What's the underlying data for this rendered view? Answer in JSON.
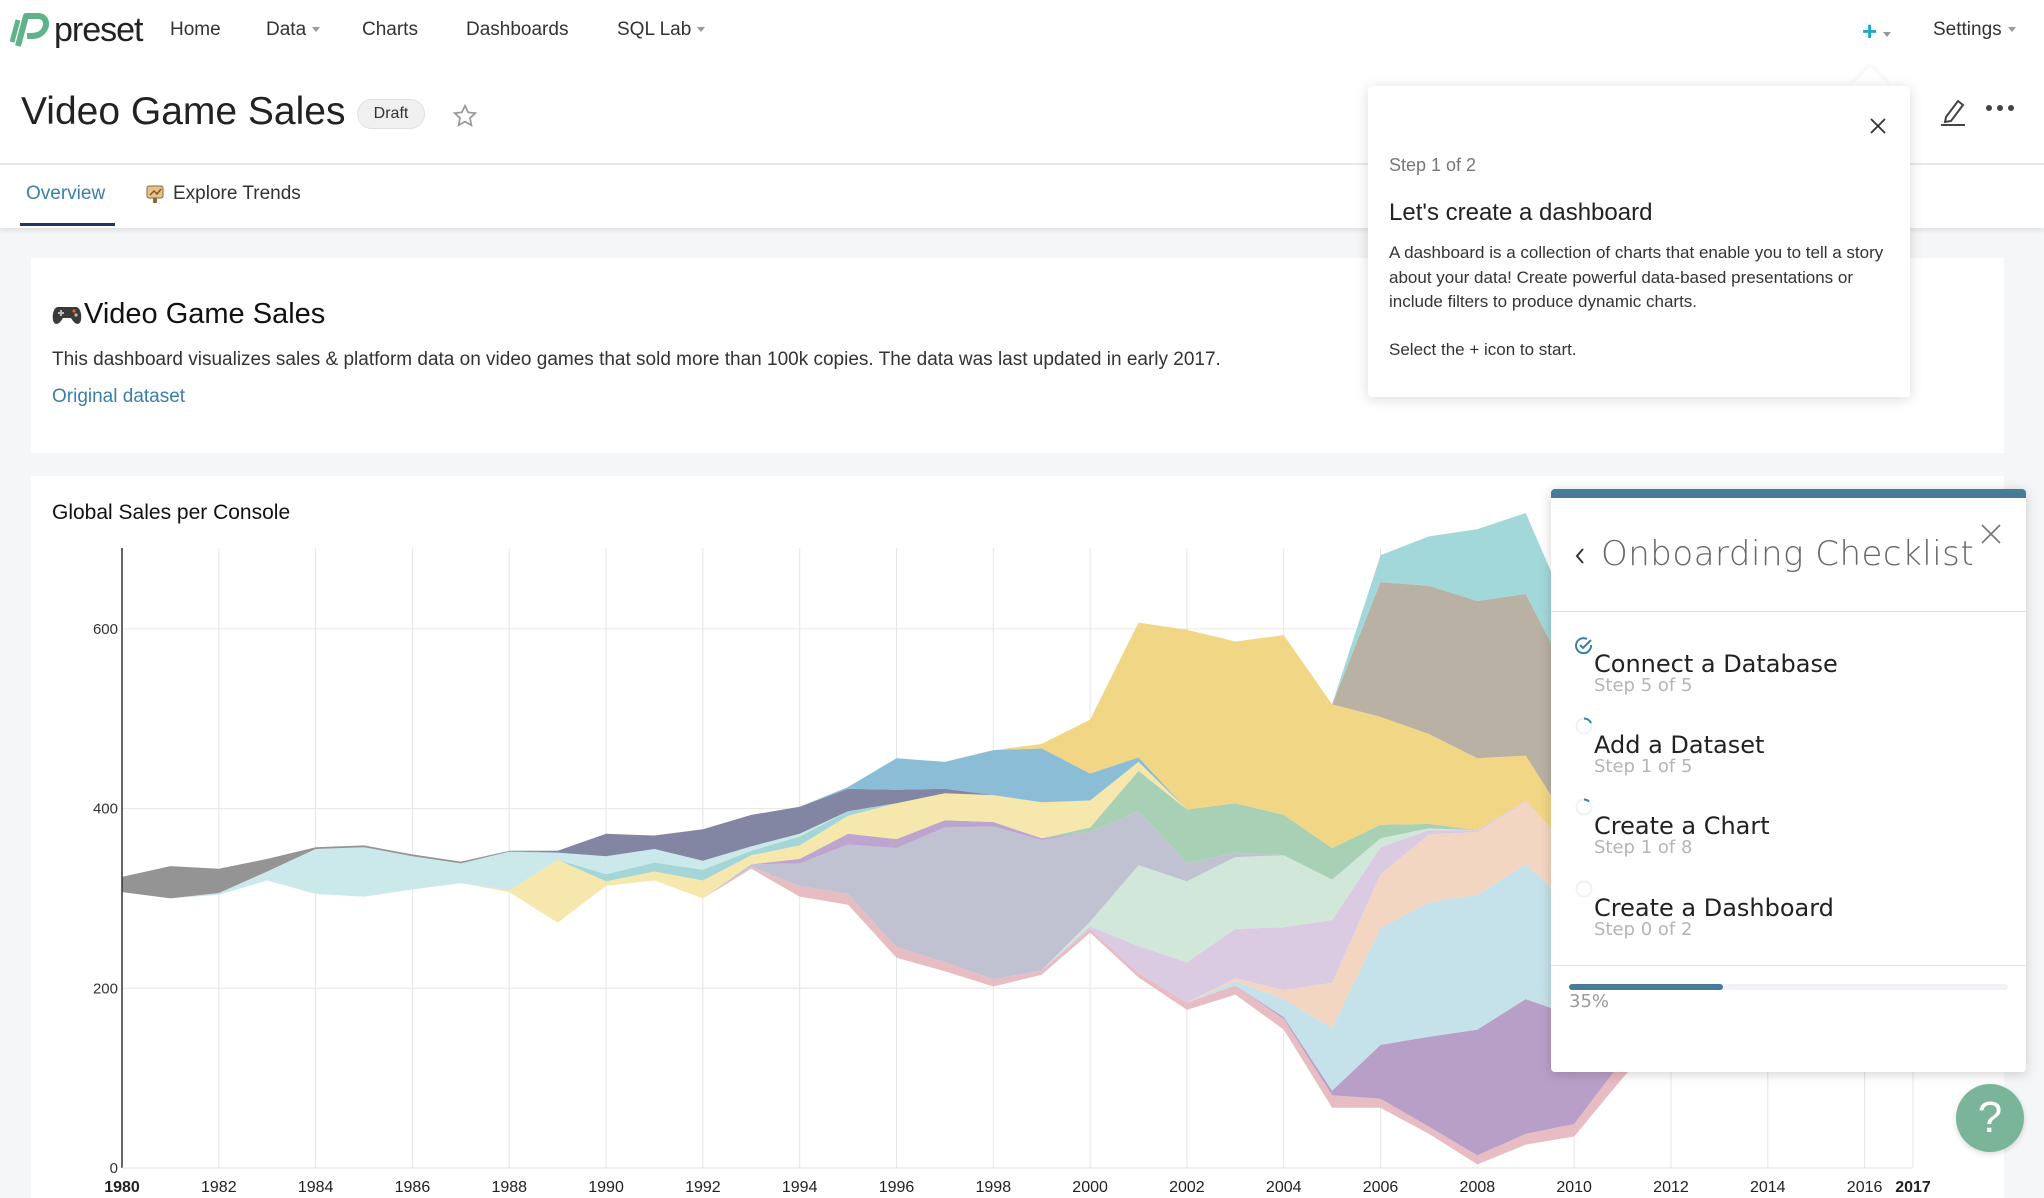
{
  "nav": {
    "brand": "preset",
    "items": [
      {
        "label": "Home",
        "dropdown": false
      },
      {
        "label": "Data",
        "dropdown": true
      },
      {
        "label": "Charts",
        "dropdown": false
      },
      {
        "label": "Dashboards",
        "dropdown": false
      },
      {
        "label": "SQL Lab",
        "dropdown": true
      }
    ],
    "settings_label": "Settings",
    "plus_color": "#20a7c9"
  },
  "header": {
    "title": "Video Game Sales",
    "badge": "Draft",
    "tabs": [
      {
        "label": "Overview",
        "active": true
      },
      {
        "label": "Explore Trends",
        "active": false
      }
    ]
  },
  "markdown": {
    "heading": "Video Game Sales",
    "description": "This dashboard visualizes sales & platform data on video games that sold more than 100k copies. The data was last updated in early 2017.",
    "link": "Original dataset"
  },
  "tooltip": {
    "step": "Step 1 of 2",
    "heading": "Let's create a dashboard",
    "body": "A dashboard is a collection of charts that enable you to tell a story about your data! Create powerful data-based presentations or include filters to produce dynamic charts.",
    "cta": "Select the + icon to start."
  },
  "checklist": {
    "title": "Onboarding Checklist",
    "items": [
      {
        "title": "Connect a Database",
        "step": "Step 5 of 5",
        "status": "done"
      },
      {
        "title": "Add a Dataset",
        "step": "Step 1 of 5",
        "status": "in-progress"
      },
      {
        "title": "Create a Chart",
        "step": "Step 1 of 8",
        "status": "in-progress"
      },
      {
        "title": "Create a Dashboard",
        "step": "Step 0 of 2",
        "status": "todo"
      }
    ],
    "progress": 35,
    "progress_label": "35%",
    "accent": "#467b9a"
  },
  "help": {
    "label": "?"
  },
  "chart_data": {
    "type": "area",
    "title": "Global Sales per Console",
    "xlabel": "",
    "ylabel": "",
    "xlim": [
      1980,
      2017
    ],
    "ylim": [
      0,
      690
    ],
    "grid": true,
    "x_ticks": [
      "1980",
      "1982",
      "1984",
      "1986",
      "1988",
      "1990",
      "1992",
      "1994",
      "1996",
      "1998",
      "2000",
      "2002",
      "2004",
      "2006",
      "2008",
      "2010",
      "2012",
      "2014",
      "2016",
      "2017"
    ],
    "y_ticks": [
      "0",
      "200",
      "400",
      "600"
    ],
    "baseline": [
      307,
      300,
      304,
      320,
      305,
      302,
      310,
      317,
      307,
      273,
      314,
      320,
      300,
      333,
      302,
      293,
      234,
      219,
      202,
      215,
      262,
      212,
      176,
      193,
      154,
      67,
      67,
      38,
      4,
      26,
      35,
      100,
      160,
      200,
      220,
      240,
      250,
      255
    ],
    "series": [
      {
        "color": "#e6b8c0",
        "start": 1993,
        "values": [
          2,
          12,
          12,
          12,
          10,
          8,
          5,
          4,
          5,
          8,
          10,
          12,
          14,
          10,
          8,
          10,
          12,
          14,
          20,
          25,
          15,
          8,
          4,
          2,
          1
        ]
      },
      {
        "color": "#b49ac4",
        "start": 2004,
        "values": [
          2,
          5,
          60,
          100,
          140,
          150,
          120,
          80,
          50,
          25,
          10,
          3,
          1
        ]
      },
      {
        "color": "#c2dfe8",
        "start": 2003,
        "values": [
          5,
          20,
          70,
          130,
          150,
          150,
          150,
          120,
          80,
          50,
          30,
          15,
          5,
          2
        ]
      },
      {
        "color": "#f2d4bf",
        "start": 2003,
        "values": [
          3,
          10,
          50,
          60,
          75,
          70,
          70,
          60,
          50,
          40,
          30,
          15,
          5,
          1
        ]
      },
      {
        "color": "#d8c8e2",
        "start": 2000,
        "values": [
          3,
          30,
          45,
          55,
          70,
          70,
          30,
          5,
          2,
          1
        ]
      },
      {
        "color": "#cfe6d8",
        "start": 2000,
        "values": [
          5,
          90,
          90,
          80,
          80,
          45,
          10,
          2
        ]
      },
      {
        "color": "#bdbfd0",
        "start": 1993,
        "values": [
          3,
          25,
          55,
          110,
          150,
          170,
          145,
          100,
          60,
          20,
          5
        ]
      },
      {
        "color": "#b9a0cc",
        "start": 1994,
        "values": [
          5,
          12,
          10,
          8,
          5,
          2
        ]
      },
      {
        "color": "#a3cdb0",
        "start": 2000,
        "values": [
          5,
          45,
          60,
          55,
          45,
          35,
          15,
          5
        ]
      },
      {
        "color": "#f5e6a8",
        "start": 1988,
        "values": [
          2,
          70,
          5,
          10,
          20,
          10,
          15,
          20,
          40,
          30,
          30,
          40,
          30,
          10
        ]
      },
      {
        "color": "#9fd4d6",
        "start": 1990,
        "values": [
          8,
          10,
          12,
          5,
          10,
          5
        ]
      },
      {
        "color": "#c8e8ea",
        "start": 1982,
        "values": [
          2,
          10,
          50,
          55,
          37,
          22,
          43,
          8,
          20,
          15,
          10,
          5,
          3
        ]
      },
      {
        "color": "#8e8e8e",
        "start": 1980,
        "values": [
          17,
          36,
          27,
          14,
          2,
          2,
          2,
          2,
          1
        ]
      },
      {
        "color": "#7c809e",
        "start": 1989,
        "values": [
          2,
          25,
          15,
          35,
          35,
          30,
          25,
          15,
          5
        ]
      },
      {
        "color": "#86b9d5",
        "start": 1995,
        "values": [
          2,
          35,
          30,
          50,
          60,
          30,
          5
        ]
      },
      {
        "color": "#f0d57e",
        "start": 1999,
        "values": [
          5,
          60,
          150,
          200,
          180,
          200,
          160,
          120,
          100,
          80,
          50,
          25,
          10,
          3
        ]
      },
      {
        "color": "#b5ad9e",
        "start": 2005,
        "values": [
          0,
          150,
          165,
          175,
          180,
          160,
          140,
          110,
          90,
          60,
          30,
          10,
          2
        ]
      },
      {
        "color": "#9dd6d8",
        "start": 2005,
        "values": [
          0,
          30,
          55,
          80,
          90,
          70,
          45,
          25,
          15,
          8,
          4,
          2,
          1
        ]
      }
    ]
  }
}
